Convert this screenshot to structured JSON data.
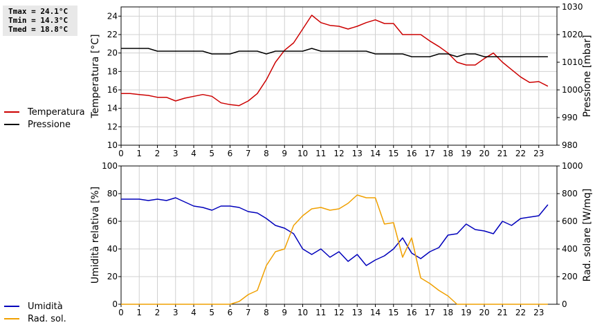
{
  "stats": {
    "tmax": "Tmax = 24.1°C",
    "tmin": "Tmin = 14.3°C",
    "tmed": "Tmed = 18.8°C"
  },
  "chart_data": [
    {
      "type": "line",
      "ylabel": "Temperatura [°C]",
      "y2label": "Pressione [mbar]",
      "xlim": [
        0,
        24
      ],
      "ylim": [
        10,
        25
      ],
      "y2lim": [
        980,
        1030
      ],
      "xticks": [
        0,
        1,
        2,
        3,
        4,
        5,
        6,
        7,
        8,
        9,
        10,
        11,
        12,
        13,
        14,
        15,
        16,
        17,
        18,
        19,
        20,
        21,
        22,
        23
      ],
      "yticks": [
        10,
        12,
        14,
        16,
        18,
        20,
        22,
        24
      ],
      "y2ticks": [
        980,
        990,
        1000,
        1010,
        1020,
        1030
      ],
      "grid": true,
      "legend_position": "left",
      "series": [
        {
          "name": "Temperatura",
          "color": "#cc0000",
          "axis": "left",
          "x": [
            0,
            0.5,
            1,
            1.5,
            2,
            2.5,
            3,
            3.5,
            4,
            4.5,
            5,
            5.5,
            6,
            6.5,
            7,
            7.5,
            8,
            8.5,
            9,
            9.5,
            10,
            10.5,
            11,
            11.5,
            12,
            12.5,
            13,
            13.5,
            14,
            14.5,
            15,
            15.5,
            16,
            16.5,
            17,
            17.5,
            18,
            18.5,
            19,
            19.5,
            20,
            20.5,
            21,
            21.5,
            22,
            22.5,
            23,
            23.5
          ],
          "values": [
            15.6,
            15.6,
            15.5,
            15.4,
            15.2,
            15.2,
            14.8,
            15.1,
            15.3,
            15.5,
            15.3,
            14.6,
            14.4,
            14.3,
            14.8,
            15.6,
            17.1,
            19.0,
            20.3,
            21.1,
            22.6,
            24.1,
            23.3,
            23.0,
            22.9,
            22.6,
            22.9,
            23.3,
            23.6,
            23.2,
            23.2,
            22.0,
            22.0,
            22.0,
            21.3,
            20.7,
            20.0,
            19.0,
            18.7,
            18.7,
            19.4,
            20.0,
            19.0,
            18.2,
            17.4,
            16.8,
            16.9,
            16.4
          ]
        },
        {
          "name": "Pressione",
          "color": "#000000",
          "axis": "right",
          "x": [
            0,
            0.5,
            1,
            1.5,
            2,
            2.5,
            3,
            3.5,
            4,
            4.5,
            5,
            5.5,
            6,
            6.5,
            7,
            7.5,
            8,
            8.5,
            9,
            9.5,
            10,
            10.5,
            11,
            11.5,
            12,
            12.5,
            13,
            13.5,
            14,
            14.5,
            15,
            15.5,
            16,
            16.5,
            17,
            17.5,
            18,
            18.5,
            19,
            19.5,
            20,
            20.5,
            21,
            21.5,
            22,
            22.5,
            23,
            23.5
          ],
          "values": [
            1015,
            1015,
            1015,
            1015,
            1014,
            1014,
            1014,
            1014,
            1014,
            1014,
            1013,
            1013,
            1013,
            1014,
            1014,
            1014,
            1013,
            1014,
            1014,
            1014,
            1014,
            1015,
            1014,
            1014,
            1014,
            1014,
            1014,
            1014,
            1013,
            1013,
            1013,
            1013,
            1012,
            1012,
            1012,
            1013,
            1013,
            1012,
            1013,
            1013,
            1012,
            1012,
            1012,
            1012,
            1012,
            1012,
            1012,
            1012
          ]
        }
      ]
    },
    {
      "type": "line",
      "ylabel": "Umidità relativa [%]",
      "y2label": "Rad. solare [W/mq]",
      "xlim": [
        0,
        24
      ],
      "ylim": [
        0,
        100
      ],
      "y2lim": [
        0,
        1000
      ],
      "xticks": [
        0,
        1,
        2,
        3,
        4,
        5,
        6,
        7,
        8,
        9,
        10,
        11,
        12,
        13,
        14,
        15,
        16,
        17,
        18,
        19,
        20,
        21,
        22,
        23
      ],
      "yticks": [
        0,
        20,
        40,
        60,
        80,
        100
      ],
      "y2ticks": [
        0,
        200,
        400,
        600,
        800,
        1000
      ],
      "grid": true,
      "legend_position": "left",
      "series": [
        {
          "name": "Umidità",
          "color": "#0000bb",
          "axis": "left",
          "x": [
            0,
            0.5,
            1,
            1.5,
            2,
            2.5,
            3,
            3.5,
            4,
            4.5,
            5,
            5.5,
            6,
            6.5,
            7,
            7.5,
            8,
            8.5,
            9,
            9.5,
            10,
            10.5,
            11,
            11.5,
            12,
            12.5,
            13,
            13.5,
            14,
            14.5,
            15,
            15.5,
            16,
            16.5,
            17,
            17.5,
            18,
            18.5,
            19,
            19.5,
            20,
            20.5,
            21,
            21.5,
            22,
            22.5,
            23,
            23.5
          ],
          "values": [
            76,
            76,
            76,
            75,
            76,
            75,
            77,
            74,
            71,
            70,
            68,
            71,
            71,
            70,
            67,
            66,
            62,
            57,
            55,
            51,
            40,
            36,
            40,
            34,
            38,
            31,
            36,
            28,
            32,
            35,
            40,
            48,
            37,
            33,
            38,
            41,
            50,
            51,
            58,
            54,
            53,
            51,
            60,
            57,
            62,
            63,
            64,
            72
          ]
        },
        {
          "name": "Rad. sol.",
          "color": "#f0a000",
          "axis": "right",
          "x": [
            0,
            0.5,
            1,
            1.5,
            2,
            2.5,
            3,
            3.5,
            4,
            4.5,
            5,
            5.5,
            6,
            6.5,
            7,
            7.5,
            8,
            8.5,
            9,
            9.5,
            10,
            10.5,
            11,
            11.5,
            12,
            12.5,
            13,
            13.5,
            14,
            14.5,
            15,
            15.5,
            16,
            16.5,
            17,
            17.5,
            18,
            18.5,
            19,
            19.5,
            20,
            20.5,
            21,
            21.5,
            22,
            22.5,
            23,
            23.5
          ],
          "values": [
            0,
            0,
            0,
            0,
            0,
            0,
            0,
            0,
            0,
            0,
            0,
            0,
            0,
            20,
            70,
            100,
            280,
            380,
            400,
            570,
            640,
            690,
            700,
            680,
            690,
            730,
            790,
            770,
            770,
            580,
            590,
            340,
            480,
            190,
            150,
            100,
            60,
            0,
            0,
            0,
            0,
            0,
            0,
            0,
            0,
            0,
            0,
            0
          ]
        }
      ]
    }
  ]
}
